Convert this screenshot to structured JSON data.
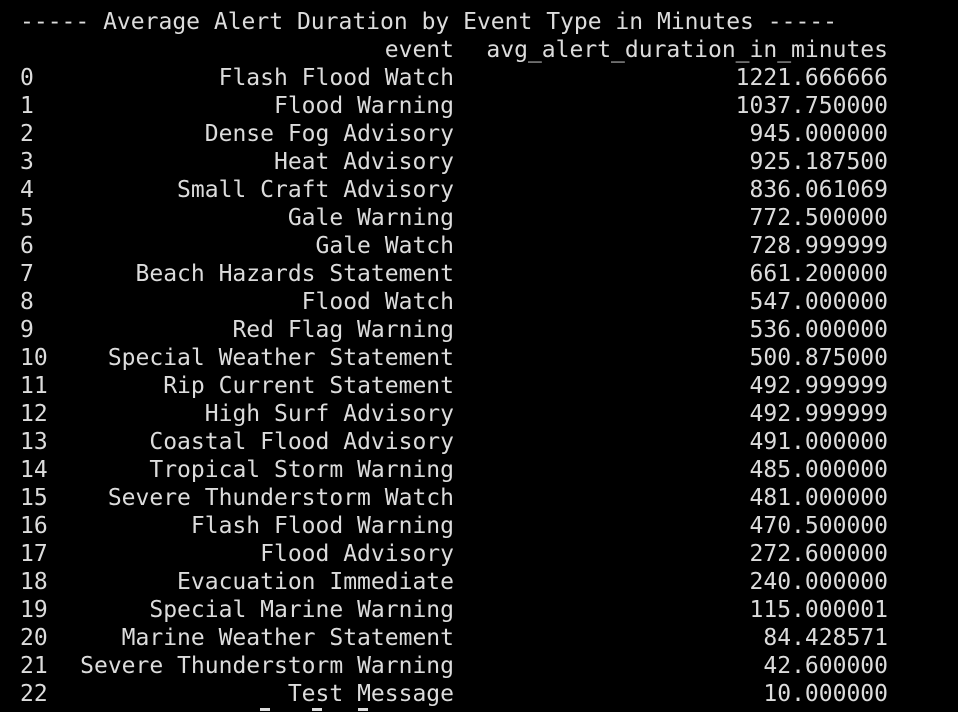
{
  "terminal": {
    "title": "----- Average Alert Duration by Event Type in Minutes -----",
    "columns": {
      "event": "event",
      "avg": "avg_alert_duration_in_minutes"
    },
    "rows": [
      {
        "index": "0",
        "event": "Flash Flood Watch",
        "avg": "1221.666666"
      },
      {
        "index": "1",
        "event": "Flood Warning",
        "avg": "1037.750000"
      },
      {
        "index": "2",
        "event": "Dense Fog Advisory",
        "avg": "945.000000"
      },
      {
        "index": "3",
        "event": "Heat Advisory",
        "avg": "925.187500"
      },
      {
        "index": "4",
        "event": "Small Craft Advisory",
        "avg": "836.061069"
      },
      {
        "index": "5",
        "event": "Gale Warning",
        "avg": "772.500000"
      },
      {
        "index": "6",
        "event": "Gale Watch",
        "avg": "728.999999"
      },
      {
        "index": "7",
        "event": "Beach Hazards Statement",
        "avg": "661.200000"
      },
      {
        "index": "8",
        "event": "Flood Watch",
        "avg": "547.000000"
      },
      {
        "index": "9",
        "event": "Red Flag Warning",
        "avg": "536.000000"
      },
      {
        "index": "10",
        "event": "Special Weather Statement",
        "avg": "500.875000"
      },
      {
        "index": "11",
        "event": "Rip Current Statement",
        "avg": "492.999999"
      },
      {
        "index": "12",
        "event": "High Surf Advisory",
        "avg": "492.999999"
      },
      {
        "index": "13",
        "event": "Coastal Flood Advisory",
        "avg": "491.000000"
      },
      {
        "index": "14",
        "event": "Tropical Storm Warning",
        "avg": "485.000000"
      },
      {
        "index": "15",
        "event": "Severe Thunderstorm Watch",
        "avg": "481.000000"
      },
      {
        "index": "16",
        "event": "Flash Flood Warning",
        "avg": "470.500000"
      },
      {
        "index": "17",
        "event": "Flood Advisory",
        "avg": "272.600000"
      },
      {
        "index": "18",
        "event": "Evacuation Immediate",
        "avg": "240.000000"
      },
      {
        "index": "19",
        "event": "Special Marine Warning",
        "avg": "115.000001"
      },
      {
        "index": "20",
        "event": "Marine Weather Statement",
        "avg": "84.428571"
      },
      {
        "index": "21",
        "event": "Severe Thunderstorm Warning",
        "avg": "42.600000"
      },
      {
        "index": "22",
        "event": "Test Message",
        "avg": "10.000000"
      }
    ],
    "colors": {
      "background": "#000000",
      "text": "#dcdcdc"
    }
  }
}
